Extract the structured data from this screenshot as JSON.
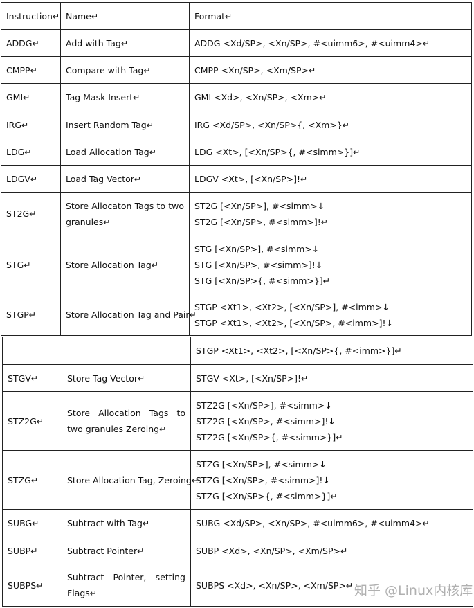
{
  "table_part1": {
    "header": [
      "Instruction↵",
      "Name↵",
      "Format↵"
    ],
    "rows": [
      {
        "instruction": "ADDG↵",
        "name": [
          "Add with Tag↵"
        ],
        "format": [
          "ADDG <Xd/SP>, <Xn/SP>, #<uimm6>, #<uimm4>↵"
        ]
      },
      {
        "instruction": "CMPP↵",
        "name": [
          "Compare with Tag↵"
        ],
        "format": [
          "CMPP <Xn/SP>, <Xm/SP>↵"
        ]
      },
      {
        "instruction": "GMI↵",
        "name": [
          "Tag Mask Insert↵"
        ],
        "format": [
          "GMI <Xd>, <Xn/SP>, <Xm>↵"
        ]
      },
      {
        "instruction": "IRG↵",
        "name": [
          "Insert Random Tag↵"
        ],
        "format": [
          "IRG <Xd/SP>, <Xn/SP>{, <Xm>}↵"
        ]
      },
      {
        "instruction": "LDG↵",
        "name": [
          "Load Allocation Tag↵"
        ],
        "format": [
          "LDG <Xt>, [<Xn/SP>{, #<simm>}]↵"
        ]
      },
      {
        "instruction": "LDGV↵",
        "name": [
          "Load Tag Vector↵"
        ],
        "format": [
          "LDGV <Xt>, [<Xn/SP>]!↵"
        ]
      },
      {
        "instruction": "ST2G↵",
        "name": [
          "Store Allocaton Tags to two",
          "granules↵"
        ],
        "format": [
          "ST2G [<Xn/SP>], #<simm>↓",
          "ST2G [<Xn/SP>, #<simm>]!↵"
        ]
      },
      {
        "instruction": "STG↵",
        "name": [
          "Store Allocation Tag↵"
        ],
        "format": [
          "STG [<Xn/SP>], #<simm>↓",
          "STG [<Xn/SP>, #<simm>]!↓",
          "STG [<Xn/SP>{, #<simm>}]↵"
        ]
      },
      {
        "instruction": "STGP↵",
        "name": [
          "Store Allocation Tag and Pair↵"
        ],
        "format": [
          "STGP <Xt1>, <Xt2>, [<Xn/SP>], #<imm>↓",
          "STGP <Xt1>, <Xt2>, [<Xn/SP>, #<imm>]!↓"
        ]
      }
    ]
  },
  "table_part2": {
    "rows": [
      {
        "instruction": "",
        "name": [],
        "format": [
          "STGP <Xt1>, <Xt2>, [<Xn/SP>{, #<imm>}]↵"
        ]
      },
      {
        "instruction": "STGV↵",
        "name": [
          "Store Tag Vector↵"
        ],
        "format": [
          "STGV <Xt>, [<Xn/SP>]!↵"
        ]
      },
      {
        "instruction": "STZ2G↵",
        "name": [
          "Store Allocation Tags to",
          "two granules Zeroing↵"
        ],
        "format": [
          "STZ2G [<Xn/SP>], #<simm>↓",
          "STZ2G [<Xn/SP>, #<simm>]!↓",
          "STZ2G [<Xn/SP>{, #<simm>}]↵"
        ]
      },
      {
        "instruction": "STZG↵",
        "name": [
          "Store Allocation Tag, Zeroing↵"
        ],
        "format": [
          "STZG [<Xn/SP>], #<simm>↓",
          "STZG [<Xn/SP>, #<simm>]!↓",
          "STZG [<Xn/SP>{, #<simm>}]↵"
        ]
      },
      {
        "instruction": "SUBG↵",
        "name": [
          "Subtract with Tag↵"
        ],
        "format": [
          "SUBG <Xd/SP>, <Xn/SP>, #<uimm6>, #<uimm4>↵"
        ]
      },
      {
        "instruction": "SUBP↵",
        "name": [
          "Subtract Pointer↵"
        ],
        "format": [
          "SUBP <Xd>, <Xn/SP>, <Xm/SP>↵"
        ]
      },
      {
        "instruction": "SUBPS↵",
        "name": [
          "Subtract Pointer, setting",
          "Flags↵"
        ],
        "format": [
          "SUBPS <Xd>, <Xn/SP>, <Xm/SP>↵"
        ]
      }
    ]
  },
  "watermark": "知乎 @Linux内核库"
}
